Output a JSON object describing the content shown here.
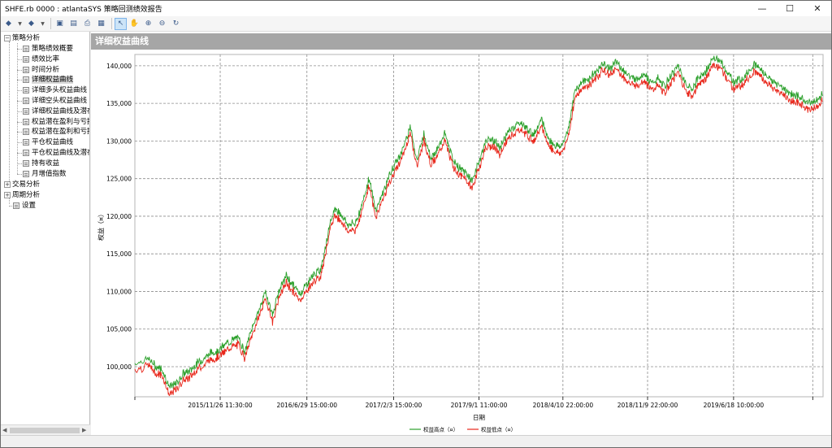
{
  "window": {
    "title": "SHFE.rb 0000 : atlantaSYS 策略回测绩效报告",
    "minimize": "—",
    "maximize": "☐",
    "close": "✕"
  },
  "toolbar": {
    "back": "◆",
    "forward": "◆",
    "dropdown": "▼",
    "save": "▣",
    "export": "▤",
    "print": "⎙",
    "report": "▦",
    "pointer": "↖",
    "hand": "✋",
    "zoom_in": "⊕",
    "zoom_out": "⊖",
    "refresh": "↻"
  },
  "tree": {
    "groups": [
      {
        "label": "策略分析",
        "expander": "−"
      },
      {
        "label": "交易分析",
        "expander": "+"
      },
      {
        "label": "周期分析",
        "expander": "+"
      }
    ],
    "items": [
      "策略绩效概要",
      "绩效比率",
      "时间分析",
      "详细权益曲线",
      "详细多头权益曲线",
      "详细空头权益曲线",
      "详细权益曲线及潜在",
      "权益潜在盈利与亏损",
      "权益潜在盈利和亏损",
      "平仓权益曲线",
      "平仓权益曲线及潜在",
      "持有收益",
      "月增值指数"
    ],
    "settings": "设置",
    "selected_index": 3
  },
  "panel": {
    "header": "详细权益曲线"
  },
  "chart_data": {
    "type": "line",
    "xlabel": "日期",
    "ylabel": "权益（¤）",
    "ylim": [
      96000,
      141500
    ],
    "y_ticks": [
      100000,
      105000,
      110000,
      115000,
      120000,
      125000,
      130000,
      135000,
      140000
    ],
    "y_tick_labels": [
      "100,000",
      "105,000",
      "110,000",
      "115,000",
      "120,000",
      "125,000",
      "130,000",
      "135,000",
      "140,000"
    ],
    "x_tick_labels": [
      "2015/11/26 11:30:00",
      "2016/6/29 15:00:00",
      "2017/2/3 15:00:00",
      "2017/9/1 11:00:00",
      "2018/4/10 22:00:00",
      "2018/11/9 22:00:00",
      "2019/6/18 10:00:00"
    ],
    "grid": true,
    "legend_position": "bottom",
    "series": [
      {
        "name": "权益高点（¤）",
        "color": "#2ca02c"
      },
      {
        "name": "权益低点（¤）",
        "color": "#e8271b"
      }
    ],
    "x": [
      0,
      0.02,
      0.03,
      0.04,
      0.05,
      0.06,
      0.07,
      0.08,
      0.09,
      0.1,
      0.11,
      0.12,
      0.13,
      0.14,
      0.15,
      0.16,
      0.17,
      0.18,
      0.19,
      0.2,
      0.21,
      0.22,
      0.23,
      0.24,
      0.25,
      0.26,
      0.27,
      0.28,
      0.29,
      0.3,
      0.31,
      0.32,
      0.33,
      0.34,
      0.35,
      0.36,
      0.37,
      0.38,
      0.39,
      0.4,
      0.41,
      0.42,
      0.43,
      0.44,
      0.45,
      0.46,
      0.47,
      0.48,
      0.49,
      0.5,
      0.51,
      0.52,
      0.53,
      0.54,
      0.55,
      0.56,
      0.57,
      0.58,
      0.59,
      0.6,
      0.61,
      0.62,
      0.63,
      0.64,
      0.65,
      0.66,
      0.67,
      0.68,
      0.69,
      0.7,
      0.71,
      0.72,
      0.73,
      0.74,
      0.75,
      0.76,
      0.77,
      0.78,
      0.79,
      0.8,
      0.81,
      0.82,
      0.83,
      0.84,
      0.85,
      0.86,
      0.87,
      0.88,
      0.89,
      0.9,
      0.91,
      0.92,
      0.93,
      0.94,
      0.95,
      0.96,
      0.97,
      0.98,
      0.99,
      1.0
    ],
    "equity": [
      100000,
      100600,
      99600,
      99200,
      96800,
      97300,
      98600,
      99000,
      100000,
      100600,
      101400,
      101600,
      102400,
      103000,
      103400,
      101600,
      104600,
      107000,
      109500,
      106400,
      109800,
      111600,
      110400,
      109200,
      110600,
      111800,
      112400,
      117000,
      120600,
      119800,
      118400,
      118600,
      121000,
      124600,
      120400,
      122600,
      125000,
      126800,
      128600,
      131600,
      127000,
      130600,
      127400,
      128400,
      130600,
      127600,
      126000,
      125400,
      124200,
      126800,
      129600,
      129800,
      128600,
      130400,
      131400,
      132000,
      131200,
      130400,
      132600,
      130000,
      129000,
      128800,
      131200,
      136400,
      137400,
      137800,
      138800,
      139800,
      139200,
      140000,
      139000,
      138000,
      137800,
      138600,
      137200,
      137800,
      136800,
      138400,
      139600,
      137200,
      136400,
      138200,
      138800,
      140600,
      140200,
      138800,
      137400,
      137800,
      138600,
      139800,
      139000,
      138000,
      137200,
      136800,
      136000,
      135600,
      135200,
      134600,
      135000,
      136000
    ]
  }
}
